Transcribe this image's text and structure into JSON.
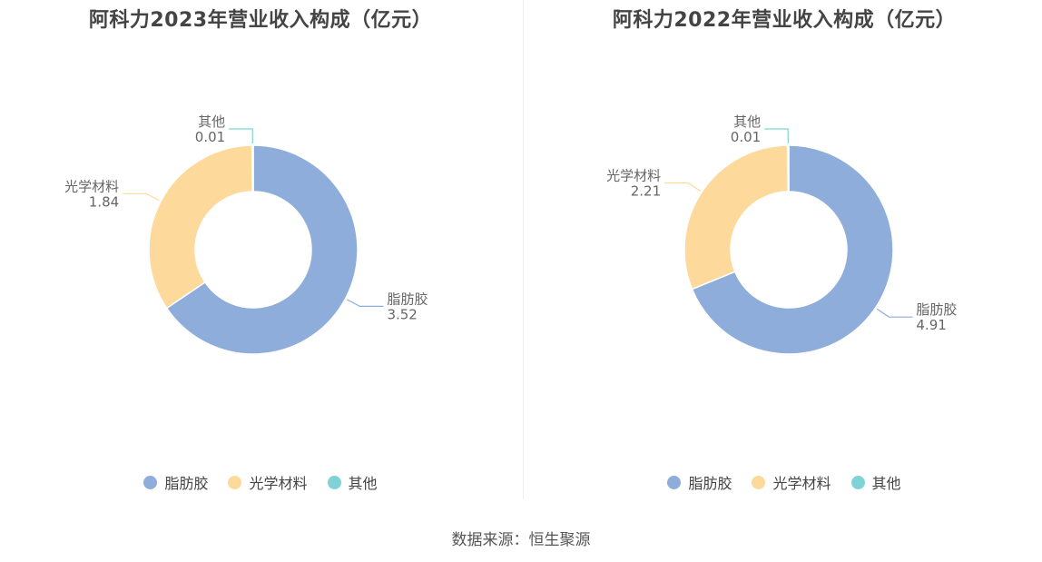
{
  "colors": {
    "脂肪胶": "#8eaddb",
    "光学材料": "#fdd99b",
    "其他": "#7fd3d6"
  },
  "source": "数据来源：恒生聚源",
  "chart_data": [
    {
      "type": "pie",
      "title": "阿科力2023年营业收入构成（亿元）",
      "categories": [
        "脂肪胶",
        "光学材料",
        "其他"
      ],
      "values": [
        3.52,
        1.84,
        0.01
      ],
      "value_labels": [
        "3.52",
        "1.84",
        "0.01"
      ],
      "legend": "bottom"
    },
    {
      "type": "pie",
      "title": "阿科力2022年营业收入构成（亿元）",
      "categories": [
        "脂肪胶",
        "光学材料",
        "其他"
      ],
      "values": [
        4.91,
        2.21,
        0.01
      ],
      "value_labels": [
        "4.91",
        "2.21",
        "0.01"
      ],
      "legend": "bottom"
    }
  ]
}
